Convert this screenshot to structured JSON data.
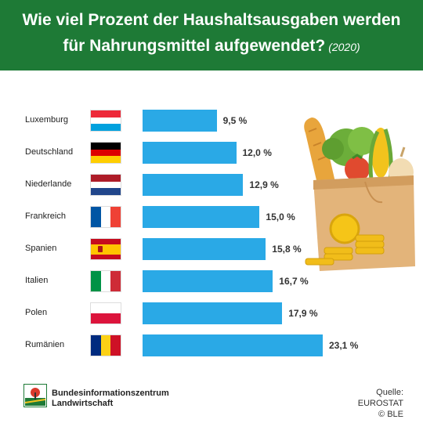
{
  "header": {
    "title_line1": "Wie viel Prozent der Haushaltsausgaben werden",
    "title_line2": "für Nahrungsmittel aufgewendet?",
    "year": "(2020)",
    "bg_color": "#1e7a36"
  },
  "chart_data": {
    "type": "bar",
    "orientation": "horizontal",
    "title": "Wie viel Prozent der Haushaltsausgaben werden für Nahrungsmittel aufgewendet? (2020)",
    "categories": [
      "Luxemburg",
      "Deutschland",
      "Niederlande",
      "Frankreich",
      "Spanien",
      "Italien",
      "Polen",
      "Rumänien"
    ],
    "values": [
      9.5,
      12.0,
      12.9,
      15.0,
      15.8,
      16.7,
      17.9,
      23.1
    ],
    "value_labels": [
      "9,5 %",
      "12,0 %",
      "12,9 %",
      "15,0 %",
      "15,8 %",
      "16,7 %",
      "17,9 %",
      "23,1 %"
    ],
    "unit": "%",
    "bar_color": "#2aa9e6",
    "grid": false,
    "legend": "none"
  },
  "flags": [
    {
      "country": "Luxemburg",
      "layout": "horizontal",
      "colors": [
        "#ed2939",
        "#ffffff",
        "#00a1de"
      ]
    },
    {
      "country": "Deutschland",
      "layout": "horizontal",
      "colors": [
        "#000000",
        "#dd0000",
        "#ffce00"
      ]
    },
    {
      "country": "Niederlande",
      "layout": "horizontal",
      "colors": [
        "#ae1c28",
        "#ffffff",
        "#21468b"
      ]
    },
    {
      "country": "Frankreich",
      "layout": "vertical",
      "colors": [
        "#0055a4",
        "#ffffff",
        "#ef4135"
      ]
    },
    {
      "country": "Spanien",
      "layout": "spain",
      "colors": [
        "#c60b1e",
        "#ffc400",
        "#c60b1e"
      ]
    },
    {
      "country": "Italien",
      "layout": "vertical",
      "colors": [
        "#009246",
        "#ffffff",
        "#ce2b37"
      ]
    },
    {
      "country": "Polen",
      "layout": "horizontal2",
      "colors": [
        "#ffffff",
        "#dc143c"
      ]
    },
    {
      "country": "Rumänien",
      "layout": "vertical",
      "colors": [
        "#002b7f",
        "#fcd116",
        "#ce1126"
      ]
    }
  ],
  "footer": {
    "org_line1": "Bundesinformationszentrum",
    "org_line2": "Landwirtschaft",
    "source_line1": "Quelle: EUROSTAT",
    "source_line2": "© BLE"
  },
  "illustration": "grocery-bag-with-coins"
}
